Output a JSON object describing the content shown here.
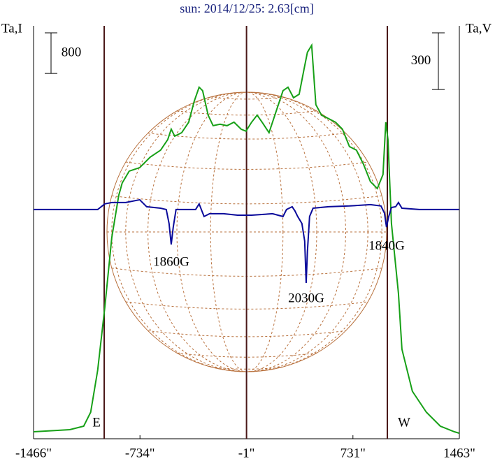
{
  "chart_data": {
    "type": "line",
    "title": "sun: 2014/12/25: 2.63[cm]",
    "y_label": "Ta,I",
    "y2_label": "Ta,V",
    "scale_bars": {
      "y": 800,
      "y2": 300
    },
    "xlim": [
      -1466,
      1463
    ],
    "xticks": [
      {
        "value": -1466,
        "label": "-1466\""
      },
      {
        "value": -734,
        "label": "-734\""
      },
      {
        "value": -1,
        "label": "-1\""
      },
      {
        "value": 731,
        "label": "731\""
      },
      {
        "value": 1463,
        "label": "1463\""
      }
    ],
    "ylim": [
      0,
      8100
    ],
    "y2lim": [
      -1203,
      973
    ],
    "limb_labels": [
      "E",
      "W"
    ],
    "annotations": [
      "1860G",
      "2030G",
      "1840G"
    ],
    "series": [
      {
        "color": "#17a017",
        "axis": "y",
        "x": [
          -1466,
          -1217,
          -1121,
          -1073,
          -1025,
          -976,
          -928,
          -880,
          -856,
          -808,
          -736,
          -664,
          -592,
          -543,
          -519,
          -495,
          -447,
          -399,
          -361,
          -327,
          -303,
          -265,
          -231,
          -183,
          -135,
          -87,
          -38,
          -5,
          34,
          72,
          106,
          154,
          202,
          250,
          284,
          322,
          361,
          394,
          418,
          447,
          476,
          515,
          563,
          611,
          659,
          707,
          755,
          803,
          851,
          899,
          938,
          957,
          972,
          996,
          1044,
          1068,
          1140,
          1236,
          1332,
          1429,
          1462
        ],
        "values": [
          96,
          138,
          207,
          482,
          1309,
          2549,
          3927,
          4754,
          5002,
          5236,
          5305,
          5512,
          5650,
          5857,
          6063,
          5925,
          5994,
          6201,
          6614,
          6890,
          6821,
          6339,
          6132,
          6160,
          6132,
          6201,
          6063,
          6022,
          6201,
          6339,
          6201,
          5994,
          6408,
          6821,
          6890,
          6683,
          6752,
          7235,
          7579,
          7717,
          6545,
          6339,
          6270,
          6201,
          6063,
          5719,
          5650,
          5374,
          5030,
          4892,
          5168,
          6201,
          5857,
          4203,
          2825,
          1723,
          896,
          482,
          207,
          96,
          69
        ]
      },
      {
        "color": "#0a0a9a",
        "axis": "y2",
        "x": [
          -1466,
          -1217,
          -1025,
          -976,
          -928,
          -832,
          -736,
          -688,
          -592,
          -553,
          -534,
          -519,
          -505,
          -486,
          -399,
          -351,
          -327,
          -293,
          -255,
          -159,
          -63,
          34,
          178,
          250,
          274,
          313,
          332,
          351,
          380,
          399,
          409,
          418,
          433,
          457,
          563,
          707,
          851,
          924,
          948,
          962,
          977,
          996,
          1025,
          1044,
          1068,
          1188,
          1462
        ],
        "values": [
          0,
          0,
          0,
          30,
          37,
          37,
          52,
          15,
          7,
          0,
          -74,
          -185,
          -93,
          0,
          0,
          0,
          30,
          -37,
          -22,
          -22,
          -30,
          -30,
          -22,
          -37,
          0,
          15,
          -7,
          -37,
          -74,
          -167,
          -389,
          -222,
          -37,
          7,
          15,
          19,
          26,
          19,
          -19,
          -93,
          -37,
          11,
          15,
          37,
          7,
          0,
          0
        ]
      }
    ]
  }
}
